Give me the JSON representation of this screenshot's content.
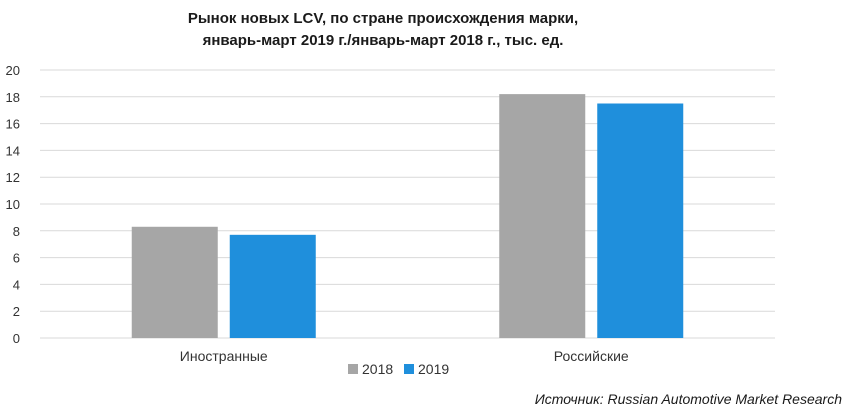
{
  "chart_data": {
    "type": "bar",
    "title": [
      "Рынок новых LCV, по стране происхождения марки,",
      "январь-март 2019 г./январь-март 2018 г., тыс. ед."
    ],
    "categories": [
      "Иностранные",
      "Российские"
    ],
    "series": [
      {
        "name": "2018",
        "values": [
          8.3,
          18.2
        ],
        "color": "#a6a6a6"
      },
      {
        "name": "2019",
        "values": [
          7.7,
          17.5
        ],
        "color": "#1f8fdc"
      }
    ],
    "ylim": [
      0,
      20
    ],
    "yticks": [
      0,
      2,
      4,
      6,
      8,
      10,
      12,
      14,
      16,
      18,
      20
    ],
    "grid": true,
    "legend_position": "bottom",
    "xlabel": "",
    "ylabel": ""
  },
  "source": "Источник: Russian Automotive Market Research"
}
